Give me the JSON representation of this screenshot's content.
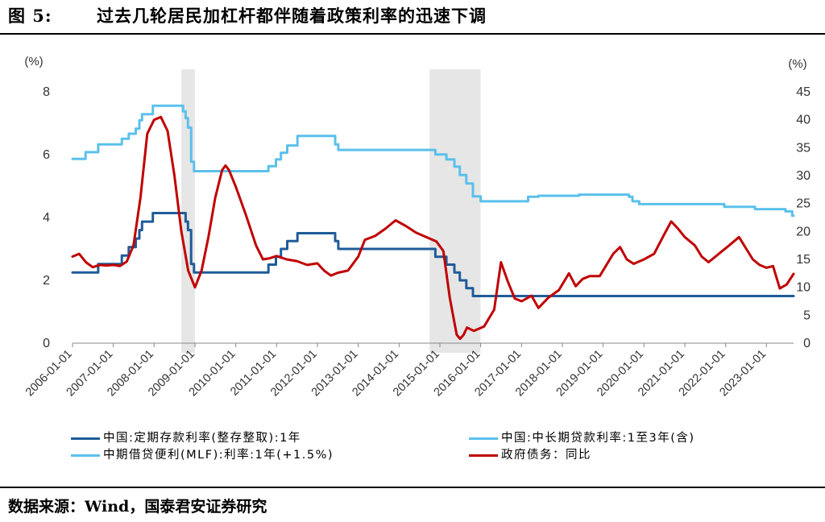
{
  "figure": {
    "number": "图 5:",
    "title": "过去几轮居民加杠杆都伴随着政策利率的迅速下调",
    "source": "数据来源：Wind，国泰君安证券研究"
  },
  "chart_data": {
    "type": "line",
    "left_axis": {
      "unit": "(%)",
      "ylim": [
        0,
        8
      ],
      "ticks": [
        0,
        2,
        4,
        6,
        8
      ]
    },
    "right_axis": {
      "unit": "(%)",
      "ylim": [
        0,
        45
      ],
      "ticks": [
        0,
        5,
        10,
        15,
        20,
        25,
        30,
        35,
        40,
        45
      ]
    },
    "x_range": [
      "2006-01-01",
      "2023-09-01"
    ],
    "x_ticks": [
      "2006-01-01",
      "2007-01-01",
      "2008-01-01",
      "2009-01-01",
      "2010-01-01",
      "2011-01-01",
      "2012-01-01",
      "2013-01-01",
      "2014-01-01",
      "2015-01-01",
      "2016-01-01",
      "2017-01-01",
      "2018-01-01",
      "2019-01-01",
      "2020-01-01",
      "2021-01-01",
      "2022-01-01",
      "2023-01-01"
    ],
    "shaded_periods": [
      [
        "2008-09-01",
        "2008-12-31"
      ],
      [
        "2014-10-01",
        "2015-12-31"
      ]
    ],
    "grid": false,
    "legend_position": "bottom",
    "series": [
      {
        "name": "中国:定期存款利率(整存整取):1年",
        "axis": "left",
        "color": "#1f5c99",
        "step": true,
        "points": [
          [
            "2006-01-01",
            2.25
          ],
          [
            "2006-08-19",
            2.52
          ],
          [
            "2007-03-18",
            2.79
          ],
          [
            "2007-05-19",
            3.06
          ],
          [
            "2007-07-21",
            3.33
          ],
          [
            "2007-08-22",
            3.6
          ],
          [
            "2007-09-15",
            3.87
          ],
          [
            "2007-12-21",
            4.14
          ],
          [
            "2008-10-09",
            3.87
          ],
          [
            "2008-10-30",
            3.6
          ],
          [
            "2008-11-27",
            2.52
          ],
          [
            "2008-12-23",
            2.25
          ],
          [
            "2010-10-20",
            2.5
          ],
          [
            "2010-12-26",
            2.75
          ],
          [
            "2011-02-09",
            3.0
          ],
          [
            "2011-04-06",
            3.25
          ],
          [
            "2011-07-07",
            3.5
          ],
          [
            "2012-06-08",
            3.25
          ],
          [
            "2012-07-06",
            3.0
          ],
          [
            "2014-11-22",
            2.75
          ],
          [
            "2015-03-01",
            2.5
          ],
          [
            "2015-05-11",
            2.25
          ],
          [
            "2015-06-28",
            2.0
          ],
          [
            "2015-08-26",
            1.75
          ],
          [
            "2015-10-24",
            1.5
          ],
          [
            "2023-06-08",
            1.5
          ],
          [
            "2023-09-01",
            1.5
          ]
        ]
      },
      {
        "name": "中国:中长期贷款利率:1至3年(含)",
        "axis": "right",
        "color": "#5bc0eb",
        "step": true,
        "points": [
          [
            "2006-01-01",
            33.0
          ],
          [
            "2006-04-28",
            34.2
          ],
          [
            "2006-08-19",
            35.6
          ],
          [
            "2007-03-18",
            36.6
          ],
          [
            "2007-05-19",
            37.5
          ],
          [
            "2007-07-21",
            38.4
          ],
          [
            "2007-08-22",
            39.9
          ],
          [
            "2007-09-15",
            41.0
          ],
          [
            "2007-12-21",
            42.5
          ],
          [
            "2008-09-16",
            41.5
          ],
          [
            "2008-10-09",
            40.3
          ],
          [
            "2008-10-30",
            38.6
          ],
          [
            "2008-11-27",
            32.5
          ],
          [
            "2008-12-23",
            30.8
          ],
          [
            "2010-10-20",
            31.7
          ],
          [
            "2010-12-26",
            32.9
          ],
          [
            "2011-02-09",
            34.1
          ],
          [
            "2011-04-06",
            35.4
          ],
          [
            "2011-07-07",
            37.1
          ],
          [
            "2012-06-08",
            35.6
          ],
          [
            "2012-07-06",
            34.6
          ],
          [
            "2014-11-22",
            33.8
          ],
          [
            "2015-03-01",
            32.9
          ],
          [
            "2015-05-11",
            31.6
          ],
          [
            "2015-06-28",
            30.1
          ],
          [
            "2015-08-26",
            28.6
          ],
          [
            "2015-10-24",
            26.3
          ],
          [
            "2016-01-01",
            25.4
          ],
          [
            "2017-01-01",
            25.4
          ],
          [
            "2017-03-01",
            26.2
          ],
          [
            "2017-06-01",
            26.4
          ],
          [
            "2018-06-01",
            26.6
          ],
          [
            "2019-08-20",
            26.2
          ],
          [
            "2019-09-20",
            25.4
          ],
          [
            "2019-11-20",
            24.9
          ],
          [
            "2021-12-20",
            24.4
          ],
          [
            "2022-01-20",
            24.4
          ],
          [
            "2022-09-20",
            24.0
          ],
          [
            "2023-06-20",
            23.6
          ],
          [
            "2023-08-20",
            22.8
          ],
          [
            "2023-09-01",
            22.8
          ]
        ]
      },
      {
        "name": "中期借贷便利(MLF):利率:1年(+1.5%)",
        "axis": "left",
        "color": "#5bc0eb",
        "step": true,
        "points": []
      },
      {
        "name": "政府债务：同比",
        "axis": "right",
        "color": "#c00000",
        "step": false,
        "points": [
          [
            "2006-01-01",
            15.5
          ],
          [
            "2006-03-01",
            16.0
          ],
          [
            "2006-05-01",
            14.5
          ],
          [
            "2006-07-01",
            13.6
          ],
          [
            "2006-09-01",
            14.0
          ],
          [
            "2006-11-01",
            13.9
          ],
          [
            "2007-01-01",
            14.0
          ],
          [
            "2007-03-01",
            13.8
          ],
          [
            "2007-05-01",
            14.6
          ],
          [
            "2007-07-01",
            17.5
          ],
          [
            "2007-09-01",
            26.0
          ],
          [
            "2007-11-01",
            37.5
          ],
          [
            "2008-01-01",
            40.0
          ],
          [
            "2008-03-01",
            40.5
          ],
          [
            "2008-05-01",
            38.0
          ],
          [
            "2008-07-01",
            30.0
          ],
          [
            "2008-09-01",
            20.0
          ],
          [
            "2008-11-01",
            13.0
          ],
          [
            "2009-01-01",
            10.0
          ],
          [
            "2009-03-01",
            13.0
          ],
          [
            "2009-05-01",
            19.0
          ],
          [
            "2009-07-01",
            26.0
          ],
          [
            "2009-09-01",
            31.0
          ],
          [
            "2009-10-01",
            31.8
          ],
          [
            "2009-11-01",
            31.0
          ],
          [
            "2010-01-01",
            28.0
          ],
          [
            "2010-04-01",
            23.0
          ],
          [
            "2010-07-01",
            17.5
          ],
          [
            "2010-09-01",
            15.0
          ],
          [
            "2010-11-01",
            15.2
          ],
          [
            "2011-01-01",
            15.6
          ],
          [
            "2011-04-01",
            15.0
          ],
          [
            "2011-07-01",
            14.7
          ],
          [
            "2011-10-01",
            14.0
          ],
          [
            "2012-01-01",
            14.3
          ],
          [
            "2012-03-01",
            13.0
          ],
          [
            "2012-05-01",
            12.1
          ],
          [
            "2012-07-01",
            12.6
          ],
          [
            "2012-10-01",
            13.0
          ],
          [
            "2013-01-01",
            15.5
          ],
          [
            "2013-03-01",
            18.5
          ],
          [
            "2013-06-01",
            19.2
          ],
          [
            "2013-09-01",
            20.5
          ],
          [
            "2013-12-01",
            22.0
          ],
          [
            "2014-03-01",
            21.0
          ],
          [
            "2014-06-01",
            19.8
          ],
          [
            "2014-09-01",
            19.0
          ],
          [
            "2014-12-01",
            18.2
          ],
          [
            "2015-02-01",
            16.5
          ],
          [
            "2015-04-01",
            8.0
          ],
          [
            "2015-06-01",
            1.5
          ],
          [
            "2015-07-01",
            0.8
          ],
          [
            "2015-08-01",
            1.5
          ],
          [
            "2015-09-01",
            2.8
          ],
          [
            "2015-10-01",
            2.5
          ],
          [
            "2015-11-01",
            2.2
          ],
          [
            "2016-02-01",
            3.0
          ],
          [
            "2016-05-01",
            6.0
          ],
          [
            "2016-07-01",
            14.5
          ],
          [
            "2016-09-01",
            11.0
          ],
          [
            "2016-11-01",
            8.0
          ],
          [
            "2017-01-01",
            7.5
          ],
          [
            "2017-04-01",
            8.5
          ],
          [
            "2017-06-01",
            6.3
          ],
          [
            "2017-09-01",
            8.2
          ],
          [
            "2017-12-01",
            9.5
          ],
          [
            "2018-03-01",
            12.5
          ],
          [
            "2018-05-01",
            10.2
          ],
          [
            "2018-07-01",
            11.5
          ],
          [
            "2018-09-01",
            12.0
          ],
          [
            "2018-12-01",
            12.0
          ],
          [
            "2019-04-01",
            16.0
          ],
          [
            "2019-06-01",
            17.2
          ],
          [
            "2019-08-01",
            15.0
          ],
          [
            "2019-10-01",
            14.2
          ],
          [
            "2020-01-01",
            15.0
          ],
          [
            "2020-04-01",
            16.0
          ],
          [
            "2020-07-01",
            19.5
          ],
          [
            "2020-09-01",
            21.8
          ],
          [
            "2020-11-01",
            20.5
          ],
          [
            "2021-01-01",
            19.0
          ],
          [
            "2021-04-01",
            17.5
          ],
          [
            "2021-06-01",
            15.5
          ],
          [
            "2021-08-01",
            14.5
          ],
          [
            "2021-11-01",
            16.0
          ],
          [
            "2022-02-01",
            17.5
          ],
          [
            "2022-05-01",
            19.0
          ],
          [
            "2022-07-01",
            17.0
          ],
          [
            "2022-09-01",
            15.0
          ],
          [
            "2022-11-01",
            14.0
          ],
          [
            "2023-01-01",
            13.5
          ],
          [
            "2023-03-01",
            13.8
          ],
          [
            "2023-05-01",
            9.8
          ],
          [
            "2023-07-01",
            10.5
          ],
          [
            "2023-09-01",
            12.4
          ]
        ]
      }
    ]
  }
}
